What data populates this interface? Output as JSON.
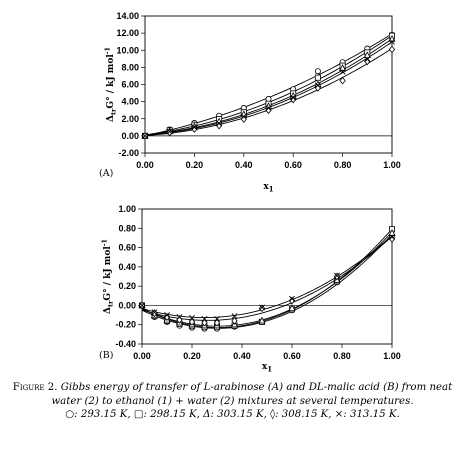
{
  "caption": {
    "label": "Figure 2.",
    "text": "Gibbs energy of transfer of L-arabinose (A) and DL-malic acid (B) from neat water (2) to ethanol (1) + water (2) mixtures at several temperatures.",
    "legend_line": "○: 293.15 K, □: 298.15 K, Δ: 303.15 K, ◊: 308.15 K, ×: 313.15 K."
  },
  "chart_data": [
    {
      "panel": "(A)",
      "type": "scatter",
      "ylabel_main": "Δ",
      "ylabel_sub": "tr",
      "ylabel_rest": "G° / kJ mol",
      "ylabel_exp": "-1",
      "xlabel_main": "x",
      "xlabel_sub": "1",
      "xlim": [
        0,
        1
      ],
      "ylim": [
        -2,
        14
      ],
      "xticks": [
        "0.00",
        "0.20",
        "0.40",
        "0.60",
        "0.80",
        "1.00"
      ],
      "yticks": [
        "-2.00",
        "0.00",
        "2.00",
        "4.00",
        "6.00",
        "8.00",
        "10.00",
        "12.00",
        "14.00"
      ],
      "x": [
        0.0,
        0.1,
        0.2,
        0.3,
        0.4,
        0.5,
        0.6,
        0.7,
        0.8,
        0.9,
        1.0
      ],
      "series": [
        {
          "marker": "circle",
          "temperature": "293.15 K",
          "values": [
            0.0,
            0.75,
            1.5,
            2.35,
            3.25,
            4.3,
            5.45,
            7.55,
            8.6,
            10.2,
            11.8
          ]
        },
        {
          "marker": "square",
          "temperature": "298.15 K",
          "values": [
            0.0,
            0.65,
            1.3,
            1.95,
            2.75,
            3.75,
            4.95,
            6.8,
            8.2,
            9.75,
            11.7
          ]
        },
        {
          "marker": "triangle",
          "temperature": "303.15 K",
          "values": [
            0.0,
            0.55,
            1.1,
            1.65,
            2.5,
            3.45,
            4.65,
            6.0,
            7.9,
            9.4,
            11.3
          ]
        },
        {
          "marker": "diamond",
          "temperature": "308.15 K",
          "values": [
            0.0,
            0.4,
            0.8,
            1.2,
            1.95,
            3.0,
            4.25,
            5.6,
            6.45,
            8.7,
            10.1
          ]
        },
        {
          "marker": "cross",
          "temperature": "313.15 K",
          "values": [
            0.0,
            0.5,
            1.0,
            1.45,
            2.25,
            3.25,
            4.45,
            5.9,
            7.5,
            8.95,
            11.0
          ]
        }
      ]
    },
    {
      "panel": "(B)",
      "type": "scatter",
      "ylabel_main": "Δ",
      "ylabel_sub": "tr",
      "ylabel_rest": "G° / kJ mol",
      "ylabel_exp": "-1",
      "xlabel_main": "x",
      "xlabel_sub": "1",
      "xlim": [
        0,
        1
      ],
      "ylim": [
        -0.4,
        1.0
      ],
      "xticks": [
        "0.00",
        "0.20",
        "0.40",
        "0.60",
        "0.80",
        "1.00"
      ],
      "yticks": [
        "-0.40",
        "-0.20",
        "0.00",
        "0.20",
        "0.40",
        "0.60",
        "0.80",
        "1.00"
      ],
      "x": [
        0.0,
        0.05,
        0.1,
        0.15,
        0.2,
        0.25,
        0.3,
        0.37,
        0.48,
        0.6,
        0.78,
        1.0
      ],
      "series": [
        {
          "marker": "circle",
          "temperature": "293.15 K",
          "values": [
            0.0,
            -0.12,
            -0.17,
            -0.21,
            -0.23,
            -0.24,
            -0.24,
            -0.22,
            -0.17,
            -0.05,
            0.24,
            0.72
          ]
        },
        {
          "marker": "square",
          "temperature": "298.15 K",
          "values": [
            0.0,
            -0.11,
            -0.16,
            -0.19,
            -0.21,
            -0.22,
            -0.22,
            -0.21,
            -0.17,
            -0.04,
            0.25,
            0.79
          ]
        },
        {
          "marker": "triangle",
          "temperature": "303.15 K",
          "values": [
            0.0,
            -0.1,
            -0.15,
            -0.18,
            -0.2,
            -0.21,
            -0.21,
            -0.2,
            -0.16,
            -0.03,
            0.26,
            0.75
          ]
        },
        {
          "marker": "diamond",
          "temperature": "308.15 K",
          "values": [
            0.0,
            -0.08,
            -0.12,
            -0.15,
            -0.17,
            -0.18,
            -0.18,
            -0.16,
            -0.03,
            0.05,
            0.3,
            0.69
          ]
        },
        {
          "marker": "cross",
          "temperature": "313.15 K",
          "values": [
            0.0,
            -0.07,
            -0.1,
            -0.12,
            -0.13,
            -0.14,
            -0.14,
            -0.11,
            -0.02,
            0.07,
            0.31,
            0.71
          ]
        }
      ]
    }
  ]
}
